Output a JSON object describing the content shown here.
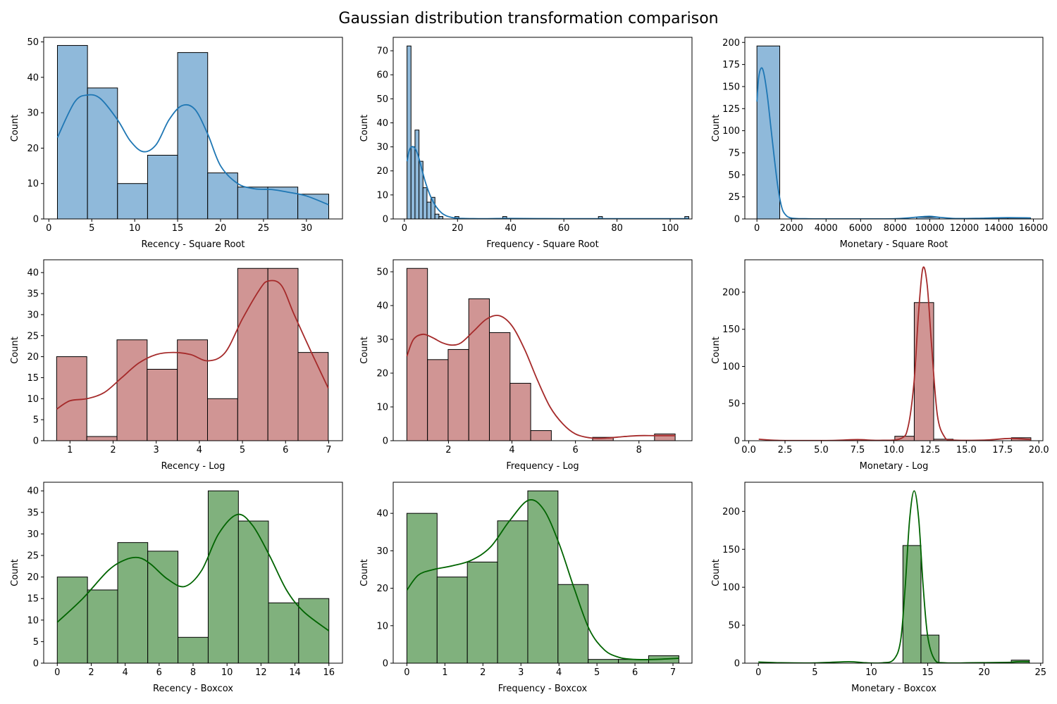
{
  "title": "Gaussian distribution transformation comparison",
  "colors": {
    "sqrt_fill": "#8fb9da",
    "sqrt_line": "#1f77b4",
    "log_fill": "#d09594",
    "log_line": "#a52a2a",
    "boxcox_fill": "#80b17d",
    "boxcox_line": "#006400",
    "edge": "#000000"
  },
  "chart_data": [
    {
      "type": "bar",
      "name": "recency-sqrt",
      "xlabel": "Recency - Square Root",
      "ylabel": "Count",
      "xlim": [
        -0.6,
        34.2
      ],
      "ylim": [
        0,
        51.3
      ],
      "xticks": [
        0,
        5,
        10,
        15,
        20,
        25,
        30
      ],
      "yticks": [
        0,
        10,
        20,
        30,
        40,
        50
      ],
      "bins": [
        1.0,
        4.5,
        8.0,
        11.5,
        15.0,
        18.5,
        22.0,
        25.5,
        29.0,
        32.6
      ],
      "counts": [
        49,
        37,
        10,
        18,
        47,
        13,
        9,
        9,
        7
      ],
      "kde": {
        "x": [
          1,
          3,
          4.5,
          6,
          8,
          9.5,
          11,
          12.5,
          14,
          15.5,
          17,
          18.5,
          20,
          22,
          24,
          26,
          28,
          30,
          32.6
        ],
        "y": [
          23,
          33,
          35,
          34,
          28,
          22,
          19,
          21,
          28,
          32,
          31,
          24,
          15,
          10,
          8.5,
          8.3,
          7.5,
          6.5,
          4
        ]
      },
      "style": "sqrt"
    },
    {
      "type": "bar",
      "name": "frequency-sqrt",
      "xlabel": "Frequency - Square Root",
      "ylabel": "Count",
      "xlim": [
        -4.2,
        108.2
      ],
      "ylim": [
        0,
        75.6
      ],
      "xticks": [
        0,
        20,
        40,
        60,
        80,
        100
      ],
      "yticks": [
        0,
        10,
        20,
        30,
        40,
        50,
        60,
        70
      ],
      "bins": [
        1.0,
        2.5,
        4.0,
        5.5,
        7.0,
        8.5,
        10.0,
        11.5,
        13.0,
        14.5,
        16.0,
        19.0,
        20.5,
        37.0,
        38.5,
        73.0,
        74.5,
        105.5,
        107.0
      ],
      "counts": [
        72,
        30,
        37,
        24,
        13,
        7,
        9,
        2,
        1,
        0,
        0,
        1,
        0,
        1,
        0,
        1,
        0,
        1
      ],
      "kde": {
        "x": [
          1,
          2,
          3.5,
          5,
          6.5,
          8,
          10,
          12,
          14,
          16,
          18,
          20,
          22,
          25,
          30,
          40,
          60,
          80,
          100,
          107
        ],
        "y": [
          24,
          29,
          30,
          27,
          21,
          15,
          9,
          5,
          2.5,
          1.2,
          0.6,
          0.3,
          0.2,
          0.15,
          0.1,
          0.2,
          0.1,
          0.1,
          0.1,
          0.1
        ]
      },
      "style": "sqrt"
    },
    {
      "type": "bar",
      "name": "monetary-sqrt",
      "xlabel": "Monetary - Square Root",
      "ylabel": "Count",
      "xlim": [
        -700,
        16550
      ],
      "ylim": [
        0,
        205.8
      ],
      "xticks": [
        0,
        2000,
        4000,
        6000,
        8000,
        10000,
        12000,
        14000,
        16000
      ],
      "yticks": [
        0,
        25,
        50,
        75,
        100,
        125,
        150,
        175,
        200
      ],
      "bins": [
        0,
        1320,
        2640,
        3960,
        5280,
        6600,
        7920,
        9240,
        10560,
        11880,
        13200,
        14520,
        15840
      ],
      "counts": [
        196,
        0,
        0,
        0,
        0,
        0,
        0,
        2,
        0,
        0,
        1,
        1
      ],
      "kde": {
        "x": [
          0,
          100,
          250,
          400,
          600,
          800,
          1000,
          1200,
          1400,
          1600,
          2000,
          3000,
          5000,
          8000,
          9500,
          10000,
          10500,
          11500,
          13000,
          14500,
          15840
        ],
        "y": [
          133,
          160,
          171,
          165,
          140,
          105,
          70,
          38,
          16,
          6,
          1,
          0.2,
          0.1,
          0.3,
          2.5,
          3,
          2,
          0.5,
          0.8,
          1.5,
          1.2
        ]
      },
      "style": "sqrt"
    },
    {
      "type": "bar",
      "name": "recency-log",
      "xlabel": "Recency - Log",
      "ylabel": "Count",
      "xlim": [
        0.39,
        7.32
      ],
      "ylim": [
        0,
        43.05
      ],
      "xticks": [
        1,
        2,
        3,
        4,
        5,
        6,
        7
      ],
      "yticks": [
        0,
        5,
        10,
        15,
        20,
        25,
        30,
        35,
        40
      ],
      "bins": [
        0.69,
        1.39,
        2.09,
        2.79,
        3.49,
        4.19,
        4.89,
        5.59,
        6.29,
        6.99
      ],
      "counts": [
        20,
        1,
        24,
        17,
        24,
        10,
        41,
        41,
        21
      ],
      "kde": {
        "x": [
          0.69,
          1,
          1.4,
          1.8,
          2.2,
          2.6,
          3,
          3.4,
          3.8,
          4.2,
          4.6,
          5,
          5.4,
          5.6,
          5.9,
          6.2,
          6.6,
          6.99
        ],
        "y": [
          7.5,
          9.5,
          10,
          11.5,
          15,
          18.5,
          20.5,
          21,
          20.5,
          19,
          21,
          29,
          36,
          38,
          37,
          30,
          21,
          12.5
        ]
      },
      "style": "log"
    },
    {
      "type": "bar",
      "name": "frequency-log",
      "xlabel": "Frequency - Log",
      "ylabel": "Count",
      "xlim": [
        0.26,
        9.67
      ],
      "ylim": [
        0,
        53.55
      ],
      "xticks": [
        2,
        4,
        6,
        8
      ],
      "yticks": [
        0,
        10,
        20,
        30,
        40,
        50
      ],
      "bins": [
        0.69,
        1.34,
        1.99,
        2.64,
        3.29,
        3.94,
        4.59,
        5.24,
        5.89,
        6.54,
        7.19,
        7.84,
        8.49,
        9.14
      ],
      "counts": [
        51,
        24,
        27,
        42,
        32,
        17,
        3,
        0,
        0,
        1,
        0,
        0,
        2
      ],
      "kde": {
        "x": [
          0.69,
          0.9,
          1.2,
          1.5,
          1.8,
          2.1,
          2.4,
          2.8,
          3.2,
          3.6,
          4,
          4.4,
          4.8,
          5.2,
          5.6,
          6,
          6.5,
          7,
          7.5,
          8,
          8.5,
          9.14
        ],
        "y": [
          25,
          30,
          31.5,
          30.5,
          29,
          28.3,
          29,
          32.5,
          36,
          37,
          34,
          27,
          18,
          10,
          5,
          2,
          0.8,
          0.8,
          1.2,
          1.5,
          1.5,
          1.5
        ]
      },
      "style": "log"
    },
    {
      "type": "bar",
      "name": "monetary-log",
      "xlabel": "Monetary - Log",
      "ylabel": "Count",
      "xlim": [
        -0.27,
        20.28
      ],
      "ylim": [
        0,
        243.6
      ],
      "xticks": [
        0.0,
        2.5,
        5.0,
        7.5,
        10.0,
        12.5,
        15.0,
        17.5,
        20.0
      ],
      "yticks": [
        0,
        50,
        100,
        150,
        200
      ],
      "bins": [
        0.69,
        2.03,
        3.37,
        4.71,
        6.05,
        7.39,
        8.73,
        10.07,
        11.41,
        12.75,
        14.09,
        15.43,
        16.77,
        18.11,
        19.45
      ],
      "counts": [
        0,
        0,
        0,
        0,
        0,
        0,
        0,
        6,
        186,
        2,
        0,
        0,
        0,
        4
      ],
      "kde": {
        "x": [
          0.69,
          2,
          4,
          6,
          7.5,
          9,
          10.5,
          11,
          11.4,
          11.7,
          12,
          12.3,
          12.6,
          13,
          13.5,
          14,
          15,
          16.5,
          18,
          19.45
        ],
        "y": [
          2,
          0.5,
          0.2,
          0.5,
          1.5,
          0.5,
          3,
          20,
          80,
          170,
          232,
          210,
          130,
          35,
          5,
          1,
          0.5,
          1,
          3,
          1.5
        ]
      },
      "style": "log"
    },
    {
      "type": "bar",
      "name": "recency-boxcox",
      "xlabel": "Recency - Boxcox",
      "ylabel": "Count",
      "xlim": [
        -0.8,
        16.8
      ],
      "ylim": [
        0,
        42.0
      ],
      "xticks": [
        0,
        2,
        4,
        6,
        8,
        10,
        12,
        14,
        16
      ],
      "yticks": [
        0,
        5,
        10,
        15,
        20,
        25,
        30,
        35,
        40
      ],
      "bins": [
        0.0,
        1.78,
        3.56,
        5.33,
        7.11,
        8.89,
        10.67,
        12.44,
        14.22,
        16.0
      ],
      "counts": [
        20,
        17,
        28,
        26,
        6,
        40,
        33,
        14,
        15
      ],
      "kde": {
        "x": [
          0,
          1.5,
          3,
          4,
          4.8,
          5.5,
          6.5,
          7.5,
          8.5,
          9.5,
          10.6,
          11.5,
          12.5,
          13.5,
          14.5,
          16
        ],
        "y": [
          9.5,
          15,
          21.5,
          24,
          24.5,
          23,
          19.5,
          17.8,
          21.5,
          30,
          34.5,
          32,
          25,
          17,
          12,
          7.5
        ]
      },
      "style": "boxcox"
    },
    {
      "type": "bar",
      "name": "frequency-boxcox",
      "xlabel": "Frequency - Boxcox",
      "ylabel": "Count",
      "xlim": [
        -0.36,
        7.5
      ],
      "ylim": [
        0,
        48.3
      ],
      "xticks": [
        0,
        1,
        2,
        3,
        4,
        5,
        6,
        7
      ],
      "yticks": [
        0,
        10,
        20,
        30,
        40
      ],
      "bins": [
        0.0,
        0.795,
        1.59,
        2.385,
        3.18,
        3.975,
        4.77,
        5.565,
        6.36,
        7.155
      ],
      "counts": [
        40,
        23,
        27,
        38,
        46,
        21,
        1,
        1,
        2
      ],
      "kde": {
        "x": [
          0,
          0.3,
          0.7,
          1.2,
          1.7,
          2.2,
          2.7,
          3.2,
          3.6,
          4,
          4.4,
          4.8,
          5.2,
          5.6,
          6,
          6.5,
          7.155
        ],
        "y": [
          19.5,
          23.5,
          25,
          26,
          27.5,
          31,
          38,
          43.5,
          41,
          32,
          20,
          9,
          3.5,
          1.5,
          1,
          1,
          1.3
        ]
      },
      "style": "boxcox"
    },
    {
      "type": "bar",
      "name": "monetary-boxcox",
      "xlabel": "Monetary - Boxcox",
      "ylabel": "Count",
      "xlim": [
        -1.2,
        25.2
      ],
      "ylim": [
        0,
        238.35
      ],
      "xticks": [
        0,
        5,
        10,
        15,
        20,
        25
      ],
      "yticks": [
        0,
        50,
        100,
        150,
        200
      ],
      "bins": [
        0.0,
        1.6,
        3.2,
        4.8,
        6.4,
        8.0,
        9.6,
        11.2,
        12.8,
        14.4,
        16.0,
        17.6,
        19.2,
        20.8,
        22.4,
        24.0
      ],
      "counts": [
        0,
        0,
        0,
        0,
        0,
        0,
        0,
        0,
        155,
        37,
        0,
        0,
        0,
        0,
        4
      ],
      "kde": {
        "x": [
          0,
          2,
          5,
          8,
          9.5,
          11,
          12,
          12.6,
          13,
          13.4,
          13.8,
          14.2,
          14.6,
          15,
          15.6,
          16.5,
          19,
          22,
          23,
          24
        ],
        "y": [
          1.5,
          0.5,
          0.3,
          2,
          0.5,
          0.5,
          5,
          30,
          100,
          190,
          227,
          190,
          100,
          35,
          5,
          0.5,
          0.5,
          1,
          2,
          2
        ]
      },
      "style": "boxcox"
    }
  ]
}
